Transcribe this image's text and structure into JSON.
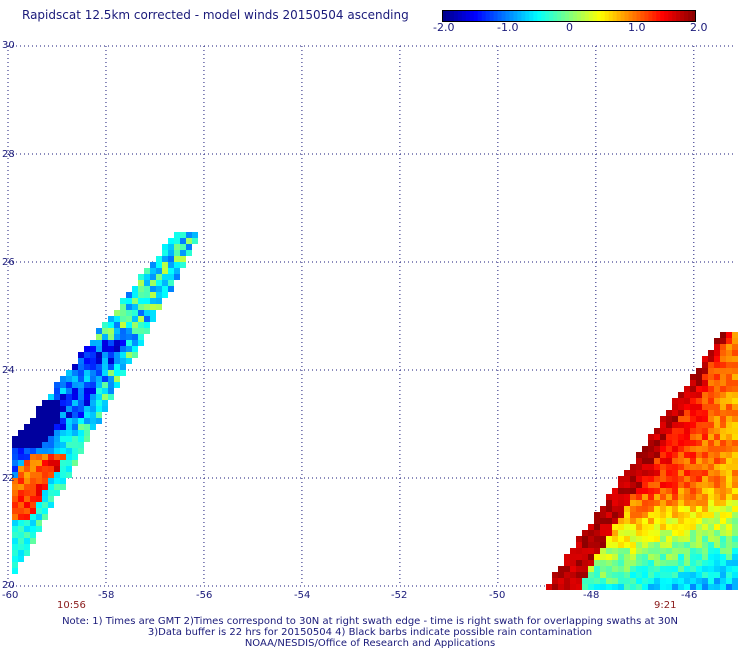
{
  "title": "Rapidscat 12.5km corrected - model winds 20150504 ascending",
  "colorbar": {
    "labels": [
      "-2.0",
      "-1.0",
      "0",
      "1.0",
      "2.0"
    ],
    "min": -2.0,
    "max": 2.0,
    "colors": [
      "#00008c",
      "#0000ff",
      "#0080ff",
      "#00ffff",
      "#80ff80",
      "#ffff00",
      "#ff8000",
      "#ff0000",
      "#8c0000"
    ]
  },
  "map": {
    "lat_labels": [
      "30",
      "28",
      "26",
      "24",
      "22",
      "20"
    ],
    "lon_labels": [
      "-60",
      "-58",
      "-56",
      "-54",
      "-52",
      "-50",
      "-48",
      "-46"
    ],
    "lat_range": [
      20,
      30
    ],
    "lon_range": [
      -60,
      -45.2
    ],
    "grid": "dotted"
  },
  "swaths": [
    {
      "name": "left-swath",
      "time": "10:56"
    },
    {
      "name": "right-swath",
      "time": "9:21"
    }
  ],
  "notes": [
    "Note: 1) Times are GMT 2)Times correspond to 30N at right swath edge - time is right swath for overlapping swaths at 30N",
    "3)Data buffer is 22 hrs for 20150504 4) Black barbs indicate possible rain contamination",
    "NOAA/NESDIS/Office of Research and Applications"
  ]
}
